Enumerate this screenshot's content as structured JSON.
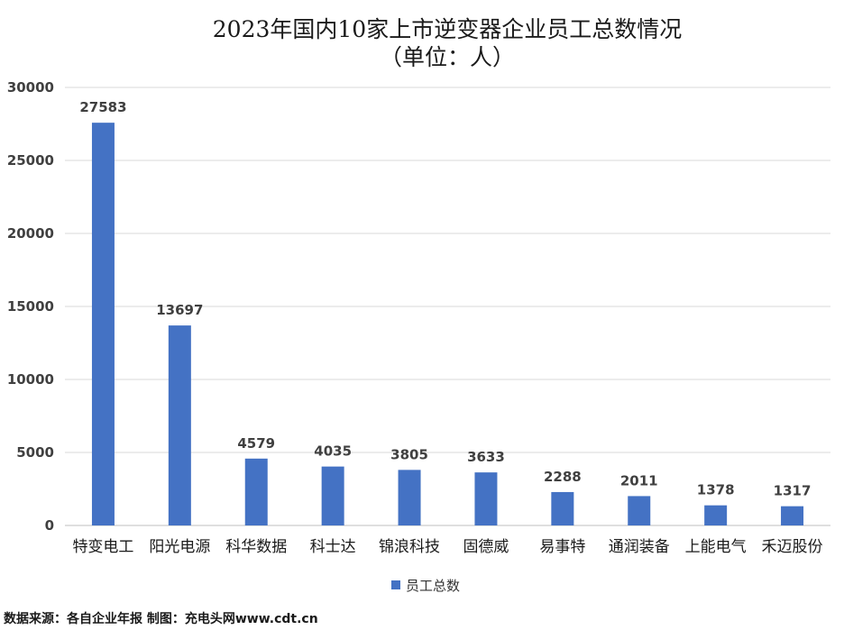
{
  "chart_data": {
    "type": "bar",
    "title": "2023年国内10家上市逆变器企业员工总数情况",
    "subtitle": "（单位：人）",
    "categories": [
      "特变电工",
      "阳光电源",
      "科华数据",
      "科士达",
      "锦浪科技",
      "固德威",
      "易事特",
      "通润装备",
      "上能电气",
      "禾迈股份"
    ],
    "series": [
      {
        "name": "员工总数",
        "values": [
          27583,
          13697,
          4579,
          4035,
          3805,
          3633,
          2288,
          2011,
          1378,
          1317
        ],
        "color": "#4472C4"
      }
    ],
    "ylim": [
      0,
      30000
    ],
    "yticks": [
      0,
      5000,
      10000,
      15000,
      20000,
      25000,
      30000
    ],
    "xlabel": "",
    "ylabel": "",
    "grid": true,
    "legend": "bottom"
  },
  "footer": {
    "source": "数据来源：各自企业年报 制图：充电头网www.cdt.cn"
  }
}
